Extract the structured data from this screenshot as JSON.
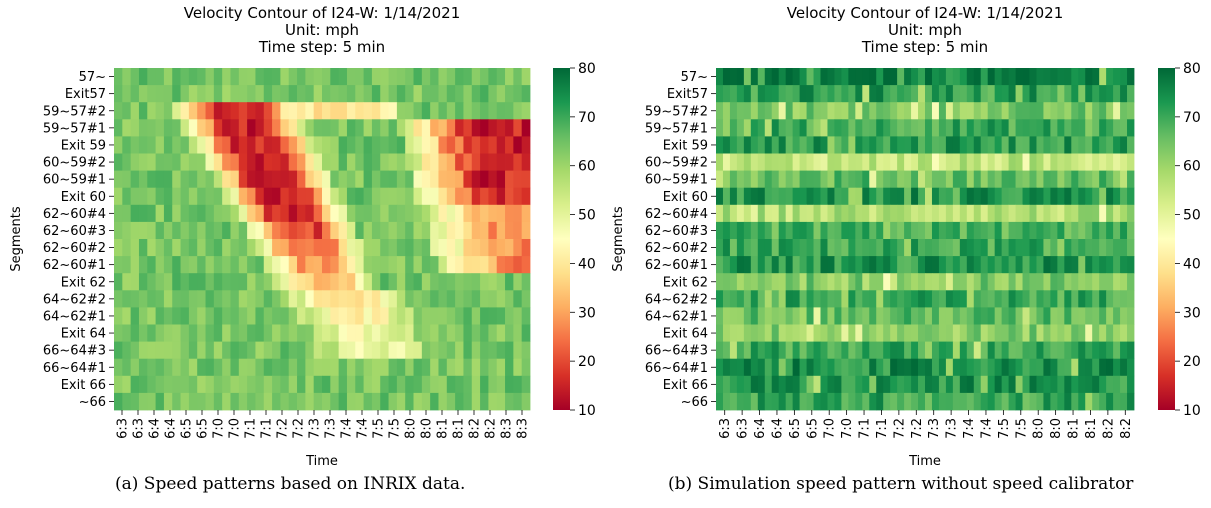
{
  "panels": [
    {
      "title_lines": [
        "Velocity Contour of I24-W: 1/14/2021",
        "Unit: mph",
        "Time step: 5 min"
      ],
      "caption": "(a)  Speed patterns based on INRIX data."
    },
    {
      "title_lines": [
        "Velocity Contour of I24-W: 1/14/2021",
        "Unit: mph",
        "Time step: 5 min"
      ],
      "caption": "(b)  Simulation speed pattern without speed calibrator"
    }
  ],
  "colorbar": {
    "colors": [
      "#a50026",
      "#d73027",
      "#f46d43",
      "#fdae61",
      "#fee08b",
      "#ffffbf",
      "#d9ef8b",
      "#a6d96a",
      "#66bd63",
      "#1a9850",
      "#006837"
    ]
  },
  "chart_data": [
    {
      "type": "heatmap",
      "title": "Velocity Contour of I24-W: 1/14/2021\nUnit: mph\nTime step: 5 min",
      "xlabel": "Time",
      "ylabel": "Segments",
      "y_categories": [
        "57~",
        "Exit57",
        "59~57#2",
        "59~57#1",
        "Exit 59",
        "60~59#2",
        "60~59#1",
        "Exit 60",
        "62~60#4",
        "62~60#3",
        "62~60#2",
        "62~60#1",
        "Exit 62",
        "64~62#2",
        "64~62#1",
        "Exit 64",
        "66~64#3",
        "66~64#1",
        "Exit 66",
        "~66"
      ],
      "x_tick_labels": [
        "6:3",
        "6:3",
        "6:4",
        "6:4",
        "6:5",
        "6:5",
        "7:0",
        "7:0",
        "7:1",
        "7:1",
        "7:2",
        "7:2",
        "7:3",
        "7:3",
        "7:4",
        "7:4",
        "7:5",
        "7:5",
        "8:0",
        "8:0",
        "8:1",
        "8:1",
        "8:2",
        "8:2",
        "8:3",
        "8:3"
      ],
      "colorbar_ticks": [
        10,
        20,
        30,
        40,
        50,
        60,
        70,
        80
      ],
      "value_range": [
        10,
        80
      ],
      "unit": "mph"
    },
    {
      "type": "heatmap",
      "title": "Velocity Contour of I24-W: 1/14/2021\nUnit: mph\nTime step: 5 min",
      "xlabel": "Time",
      "ylabel": "Segments",
      "y_categories": [
        "57~",
        "Exit57",
        "59~57#2",
        "59~57#1",
        "Exit 59",
        "60~59#2",
        "60~59#1",
        "Exit 60",
        "62~60#4",
        "62~60#3",
        "62~60#2",
        "62~60#1",
        "Exit 62",
        "64~62#2",
        "64~62#1",
        "Exit 64",
        "66~64#3",
        "66~64#1",
        "Exit 66",
        "~66"
      ],
      "x_tick_labels": [
        "6:3",
        "6:3",
        "6:4",
        "6:4",
        "6:5",
        "6:5",
        "7:0",
        "7:0",
        "7:1",
        "7:1",
        "7:2",
        "7:2",
        "7:3",
        "7:3",
        "7:4",
        "7:4",
        "7:5",
        "7:5",
        "8:0",
        "8:0",
        "8:1",
        "8:1",
        "8:2",
        "8:2"
      ],
      "colorbar_ticks": [
        10,
        20,
        30,
        40,
        50,
        60,
        70,
        80
      ],
      "value_range": [
        10,
        80
      ],
      "unit": "mph"
    }
  ]
}
